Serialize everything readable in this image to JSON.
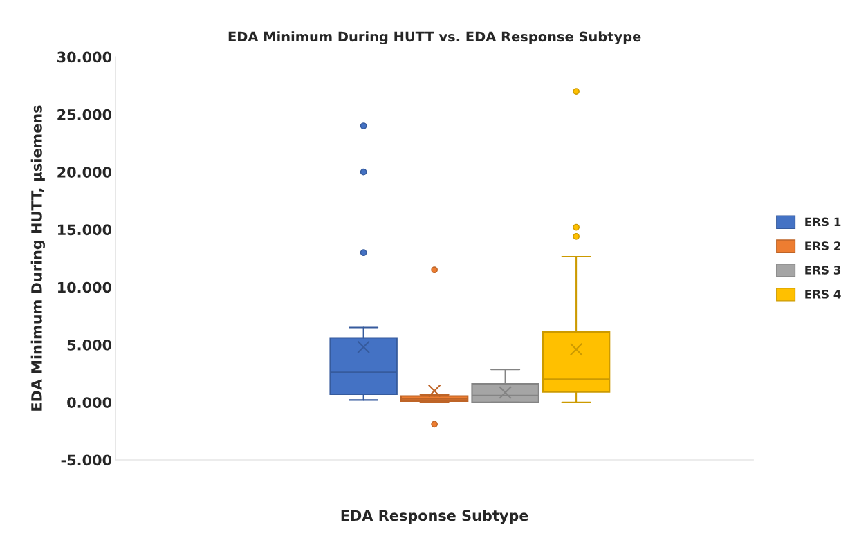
{
  "chart_data": {
    "type": "box",
    "title": "EDA Minimum During HUTT vs. EDA Response Subtype",
    "xlabel": "EDA Response Subtype",
    "ylabel": "EDA Minimum During HUTT, µsiemens",
    "categories": [
      null
    ],
    "series": [
      {
        "name": "ERS 1",
        "color": "#4472c4",
        "boxes": [
          {
            "low": 0.2,
            "q1": 0.7,
            "median": 2.6,
            "q3": 5.6,
            "high": 6.5,
            "mean": 4.8,
            "outliers": [
              13.0,
              20.0,
              24.0
            ]
          }
        ]
      },
      {
        "name": "ERS 2",
        "color": "#ed7d31",
        "boxes": [
          {
            "low": 0.0,
            "q1": 0.1,
            "median": 0.3,
            "q3": 0.55,
            "high": 0.65,
            "mean": 1.0,
            "outliers": [
              -1.9,
              11.5
            ]
          }
        ]
      },
      {
        "name": "ERS 3",
        "color": "#a5a5a5",
        "boxes": [
          {
            "low": 0.0,
            "q1": 0.0,
            "median": 0.6,
            "q3": 1.6,
            "high": 2.85,
            "mean": 0.85
          }
        ]
      },
      {
        "name": "ERS 4",
        "color": "#ffc000",
        "boxes": [
          {
            "low": 0.0,
            "q1": 0.9,
            "median": 2.0,
            "q3": 6.1,
            "high": 12.65,
            "mean": 4.6,
            "outliers": [
              14.4,
              15.2,
              27.0
            ]
          }
        ]
      }
    ],
    "ylim": [
      -5,
      30
    ],
    "yticks": [
      {
        "value": -5,
        "label": "-5.000"
      },
      {
        "value": 0,
        "label": "0.000"
      },
      {
        "value": 5,
        "label": "5.000"
      },
      {
        "value": 10,
        "label": "10.000"
      },
      {
        "value": 15,
        "label": "15.000"
      },
      {
        "value": 20,
        "label": "20.000"
      },
      {
        "value": 25,
        "label": "25.000"
      },
      {
        "value": 30,
        "label": "30.000"
      }
    ],
    "tick_labels": "y",
    "grid": false,
    "legend": "right"
  }
}
